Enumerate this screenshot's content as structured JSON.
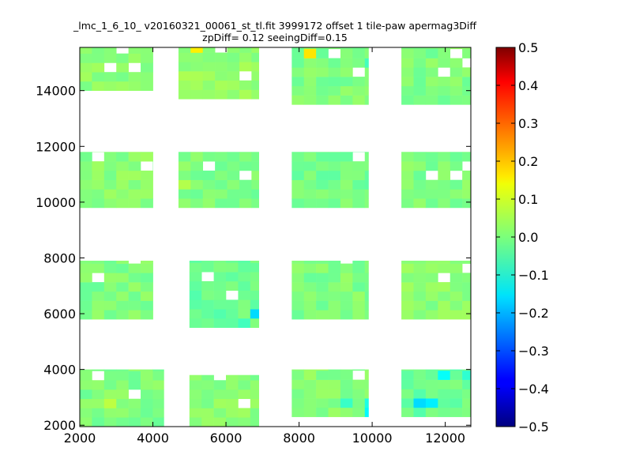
{
  "chart_data": {
    "type": "heatmap",
    "title": "_lmc_1_6_10_ v20160321_00061_st_tl.fit 3999172 offset 1 tile-paw apermag3Diff",
    "subtitle": "zpDiff= 0.12 seeingDiff=0.15",
    "xlabel": "",
    "ylabel": "",
    "xlim": [
      2000,
      12700
    ],
    "ylim": [
      1950,
      15550
    ],
    "x_ticks": [
      2000,
      4000,
      6000,
      8000,
      10000,
      12000
    ],
    "y_ticks": [
      2000,
      4000,
      6000,
      8000,
      10000,
      12000,
      14000
    ],
    "grid": false,
    "colormap": "jet",
    "colorbar": {
      "range": [
        -0.5,
        0.5
      ],
      "ticks": [
        "0.5",
        "0.4",
        "0.3",
        "0.2",
        "0.1",
        "0.0",
        "−0.1",
        "−0.2",
        "−0.3",
        "−0.4",
        "−0.5"
      ],
      "tick_values": [
        0.5,
        0.4,
        0.3,
        0.2,
        0.1,
        0.0,
        -0.1,
        -0.2,
        -0.3,
        -0.4,
        -0.5
      ]
    },
    "cell_size": 333,
    "cells_note": "",
    "regions": [
      {
        "x": [
          2000,
          4000
        ],
        "y": [
          14000,
          15550
        ],
        "v": 0.01
      },
      {
        "x": [
          4700,
          6900
        ],
        "y": [
          13700,
          15550
        ],
        "v": 0.02
      },
      {
        "x": [
          7800,
          9900
        ],
        "y": [
          13500,
          15550
        ],
        "v": 0.0
      },
      {
        "x": [
          10800,
          12700
        ],
        "y": [
          13500,
          15550
        ],
        "v": 0.0
      },
      {
        "x": [
          2000,
          4000
        ],
        "y": [
          9800,
          11800
        ],
        "v": 0.01
      },
      {
        "x": [
          4700,
          6900
        ],
        "y": [
          9800,
          11800
        ],
        "v": 0.0
      },
      {
        "x": [
          7800,
          9900
        ],
        "y": [
          9800,
          11800
        ],
        "v": -0.01
      },
      {
        "x": [
          10800,
          12700
        ],
        "y": [
          9800,
          11800
        ],
        "v": 0.0
      },
      {
        "x": [
          2000,
          4000
        ],
        "y": [
          5800,
          7900
        ],
        "v": 0.0
      },
      {
        "x": [
          5000,
          6900
        ],
        "y": [
          5500,
          7900
        ],
        "v": -0.02
      },
      {
        "x": [
          7800,
          9900
        ],
        "y": [
          5800,
          7900
        ],
        "v": 0.0
      },
      {
        "x": [
          10800,
          12700
        ],
        "y": [
          5800,
          7900
        ],
        "v": 0.01
      },
      {
        "x": [
          2000,
          4300
        ],
        "y": [
          1950,
          4000
        ],
        "v": 0.0
      },
      {
        "x": [
          5000,
          6900
        ],
        "y": [
          1950,
          3800
        ],
        "v": 0.01
      },
      {
        "x": [
          7800,
          9900
        ],
        "y": [
          2300,
          4000
        ],
        "v": 0.01
      },
      {
        "x": [
          10800,
          12700
        ],
        "y": [
          2300,
          4000
        ],
        "v": -0.02
      }
    ],
    "holes": [
      [
        3000,
        15300
      ],
      [
        2700,
        14500
      ],
      [
        3300,
        14700
      ],
      [
        6300,
        14300
      ],
      [
        5700,
        15200
      ],
      [
        8700,
        15300
      ],
      [
        9300,
        14500
      ],
      [
        11700,
        14700
      ],
      [
        12300,
        14900
      ],
      [
        12000,
        15300
      ],
      [
        2300,
        11300
      ],
      [
        3700,
        11000
      ],
      [
        5300,
        11000
      ],
      [
        6300,
        10500
      ],
      [
        9300,
        11300
      ],
      [
        11300,
        10500
      ],
      [
        12300,
        11000
      ],
      [
        12000,
        10500
      ],
      [
        2300,
        7000
      ],
      [
        3300,
        7800
      ],
      [
        6000,
        6700
      ],
      [
        5300,
        7300
      ],
      [
        9000,
        7500
      ],
      [
        11700,
        7000
      ],
      [
        12300,
        7300
      ],
      [
        3300,
        3000
      ],
      [
        2300,
        3700
      ],
      [
        5700,
        3500
      ],
      [
        6300,
        2500
      ],
      [
        9300,
        3500
      ]
    ],
    "highlights": [
      {
        "x": 4900,
        "y": 15400,
        "v": 0.14
      },
      {
        "x": 7900,
        "y": 15400,
        "v": 0.15
      },
      {
        "x": 2600,
        "y": 2600,
        "v": 0.06
      },
      {
        "x": 4600,
        "y": 10200,
        "v": 0.05
      },
      {
        "x": 6800,
        "y": 6000,
        "v": -0.16
      },
      {
        "x": 6200,
        "y": 5600,
        "v": -0.06
      },
      {
        "x": 9800,
        "y": 2200,
        "v": -0.13
      },
      {
        "x": 9600,
        "y": 2600,
        "v": -0.1
      },
      {
        "x": 9000,
        "y": 2600,
        "v": -0.07
      },
      {
        "x": 11000,
        "y": 2600,
        "v": -0.16
      },
      {
        "x": 11300,
        "y": 2600,
        "v": -0.14
      },
      {
        "x": 11500,
        "y": 3800,
        "v": -0.12
      },
      {
        "x": 12200,
        "y": 3800,
        "v": -0.08
      },
      {
        "x": 9600,
        "y": 14900,
        "v": -0.06
      },
      {
        "x": 4200,
        "y": 3300,
        "v": -0.06
      }
    ]
  }
}
